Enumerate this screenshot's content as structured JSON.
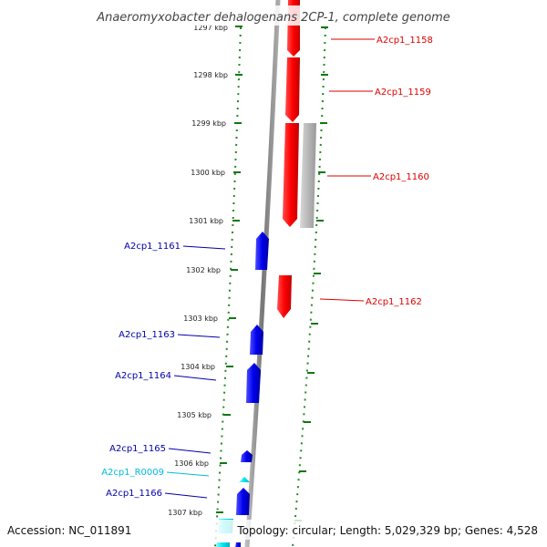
{
  "title": "Anaeromyxobacter dehalogenans 2CP-1, complete genome",
  "footer": {
    "accession": "Accession: NC_011891",
    "summary": "Topology: circular; Length: 5,029,329 bp; Genes: 4,528"
  },
  "ticks": [
    "1297 kbp",
    "1298 kbp",
    "1299 kbp",
    "1300 kbp",
    "1301 kbp",
    "1302 kbp",
    "1303 kbp",
    "1304 kbp",
    "1305 kbp",
    "1306 kbp",
    "1307 kbp"
  ],
  "genes": [
    {
      "label": "A2cp1_1158",
      "color": "#dd0000",
      "strand": "forward"
    },
    {
      "label": "A2cp1_1159",
      "color": "#dd0000",
      "strand": "forward"
    },
    {
      "label": "A2cp1_1160",
      "color": "#dd0000",
      "strand": "forward"
    },
    {
      "label": "A2cp1_1161",
      "color": "#0000aa",
      "strand": "reverse"
    },
    {
      "label": "A2cp1_1162",
      "color": "#dd0000",
      "strand": "forward"
    },
    {
      "label": "A2cp1_1163",
      "color": "#0000aa",
      "strand": "reverse"
    },
    {
      "label": "A2cp1_1164",
      "color": "#0000aa",
      "strand": "reverse"
    },
    {
      "label": "A2cp1_1165",
      "color": "#0000aa",
      "strand": "reverse"
    },
    {
      "label": "A2cp1_R0009",
      "color": "#00bbdd",
      "strand": "reverse"
    },
    {
      "label": "A2cp1_1166",
      "color": "#0000aa",
      "strand": "reverse"
    }
  ],
  "colors": {
    "forward_gene": "#ff0000",
    "reverse_gene": "#0000ee",
    "rna_gene": "#00e5ee",
    "pseudo_gene": "#b8b8b8",
    "backbone": "#888888",
    "dotted_track": "#228822"
  }
}
